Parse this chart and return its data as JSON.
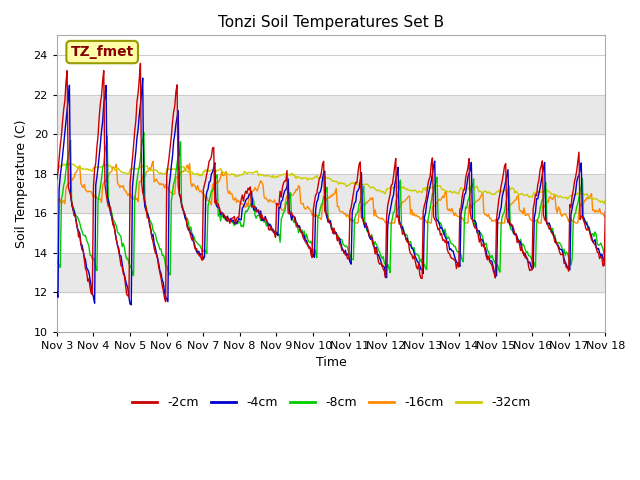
{
  "title": "Tonzi Soil Temperatures Set B",
  "xlabel": "Time",
  "ylabel": "Soil Temperature (C)",
  "ylim": [
    10,
    25
  ],
  "yticks": [
    10,
    12,
    14,
    16,
    18,
    20,
    22,
    24
  ],
  "annotation": "TZ_fmet",
  "legend": [
    "-2cm",
    "-4cm",
    "-8cm",
    "-16cm",
    "-32cm"
  ],
  "colors": [
    "#cc0000",
    "#0000cc",
    "#00cc00",
    "#ff8800",
    "#cccc00"
  ],
  "bg_color": "#ffffff",
  "n_points": 480,
  "x_start": 3,
  "x_end": 18,
  "xtick_positions": [
    3,
    4,
    5,
    6,
    7,
    8,
    9,
    10,
    11,
    12,
    13,
    14,
    15,
    16,
    17,
    18
  ],
  "xtick_labels": [
    "Nov 3",
    "Nov 4",
    "Nov 5",
    "Nov 6",
    "Nov 7",
    "Nov 8",
    "Nov 9",
    "Nov 10",
    "Nov 11",
    "Nov 12",
    "Nov 13",
    "Nov 14",
    "Nov 15",
    "Nov 16",
    "Nov 17",
    "Nov 18"
  ],
  "band_colors": [
    "#ffffff",
    "#e8e8e8"
  ]
}
